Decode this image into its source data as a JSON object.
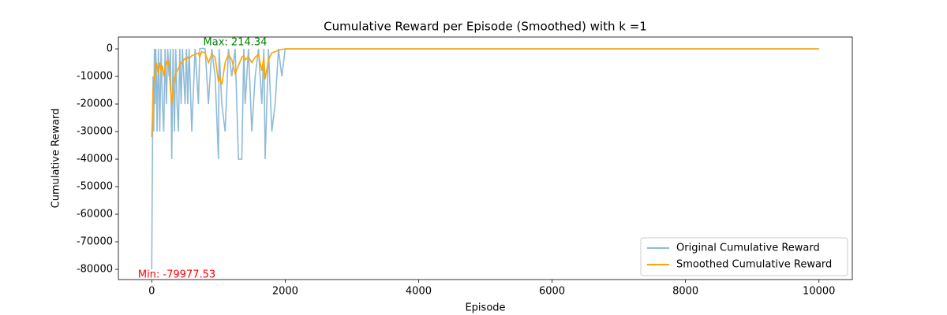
{
  "chart_data": {
    "type": "line",
    "title": "Cumulative Reward per Episode (Smoothed) with k =1",
    "x_label": "Episode",
    "y_label": "Cumulative Reward",
    "x": [
      0,
      10,
      20,
      30,
      40,
      50,
      60,
      70,
      80,
      100,
      120,
      140,
      160,
      180,
      200,
      220,
      240,
      260,
      280,
      300,
      320,
      340,
      360,
      380,
      400,
      420,
      440,
      460,
      480,
      500,
      520,
      540,
      560,
      600,
      650,
      700,
      720,
      750,
      800,
      850,
      900,
      950,
      1000,
      1010,
      1050,
      1100,
      1150,
      1200,
      1250,
      1300,
      1350,
      1380,
      1400,
      1450,
      1500,
      1550,
      1600,
      1650,
      1680,
      1700,
      1750,
      1800,
      1850,
      1900,
      1950,
      2000,
      10000
    ],
    "series": [
      {
        "name": "Original Cumulative Reward",
        "color": "#1f77b4",
        "opacity": 0.5,
        "values": [
          -79977.53,
          -40000,
          -10000,
          -30000,
          0,
          -20000,
          0,
          -10000,
          -30000,
          0,
          -30000,
          0,
          -20000,
          -30000,
          0,
          -20000,
          0,
          -10000,
          0,
          -40000,
          0,
          -30000,
          0,
          -20000,
          -30000,
          0,
          -20000,
          0,
          -10000,
          -20000,
          0,
          -20000,
          0,
          -30000,
          0,
          -20000,
          0,
          214.34,
          0,
          -20000,
          0,
          -10000,
          -40000,
          0,
          -20000,
          -30000,
          0,
          -10000,
          0,
          -40000,
          -40000,
          0,
          -20000,
          0,
          -30000,
          -10000,
          0,
          -20000,
          0,
          -40000,
          0,
          -30000,
          -20000,
          0,
          -10000,
          0,
          0
        ]
      },
      {
        "name": "Smoothed Cumulative Reward",
        "color": "#ffa500",
        "opacity": 1,
        "values": [
          -32000,
          -25000,
          -15000,
          -12000,
          -10000,
          -8000,
          -6000,
          -5000,
          -7000,
          -9000,
          -5000,
          -8000,
          -6000,
          -10000,
          -7000,
          -5000,
          -4000,
          -6000,
          -15000,
          -20000,
          -14000,
          -11000,
          -9000,
          -8000,
          -7000,
          -6000,
          -5000,
          -5000,
          -4000,
          -3500,
          -4000,
          -3000,
          -3500,
          -2500,
          -2000,
          -1500,
          -3000,
          -1000,
          -1500,
          -5000,
          -2000,
          -3000,
          -12000,
          -10000,
          -13000,
          -5000,
          -2000,
          -4000,
          -9000,
          -6000,
          -3000,
          -2500,
          -4000,
          -3000,
          -5000,
          -3000,
          -2000,
          -8000,
          -3000,
          -11000,
          -4000,
          -1500,
          -1000,
          -500,
          -200,
          0,
          0
        ]
      }
    ],
    "annotations": [
      {
        "text": "Max: 214.34",
        "color": "green"
      },
      {
        "text": "Min: -79977.53",
        "color": "red"
      }
    ],
    "xlim": [
      -500,
      10500
    ],
    "xticks": [
      0,
      2000,
      4000,
      6000,
      8000,
      10000
    ],
    "ylim": [
      -83700,
      4300
    ],
    "yticks": [
      -80000,
      -70000,
      -60000,
      -50000,
      -40000,
      -30000,
      -20000,
      -10000,
      0
    ],
    "grid": false,
    "legend": "lower right"
  }
}
